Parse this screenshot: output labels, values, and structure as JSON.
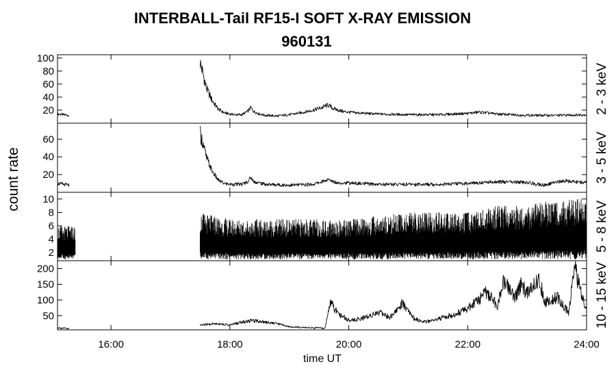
{
  "chart_data": {
    "type": "line",
    "title": "INTERBALL-Tail RF15-I SOFT X-RAY EMISSION",
    "subtitle": "960131",
    "xlabel": "time UT",
    "ylabel": "count rate",
    "xlim": [
      15.1,
      24.0
    ],
    "x_ticks": [
      16,
      18,
      20,
      22,
      24
    ],
    "x_tick_labels": [
      "16:00",
      "18:00",
      "20:00",
      "22:00",
      "24:00"
    ],
    "grid": false,
    "panels": [
      {
        "label": "2 - 3 keV",
        "ylim": [
          0,
          105
        ],
        "y_ticks": [
          20,
          40,
          60,
          80,
          100
        ],
        "series": [
          {
            "x": [
              15.1,
              15.2,
              15.3
            ],
            "y": [
              14,
              13,
              12
            ]
          },
          {
            "x": [
              17.5,
              17.55,
              17.6,
              17.7,
              17.8,
              17.9,
              18.0,
              18.1,
              18.2,
              18.3,
              18.35,
              18.4,
              18.5,
              18.6,
              18.8,
              19.0,
              19.2,
              19.4,
              19.55,
              19.65,
              19.75,
              19.9,
              20.1,
              20.5,
              21.0,
              21.5,
              22.0,
              22.2,
              22.5,
              23.0,
              23.5,
              24.0
            ],
            "y": [
              93,
              75,
              55,
              35,
              22,
              16,
              14,
              13,
              13,
              18,
              24,
              18,
              14,
              12,
              11,
              13,
              16,
              20,
              24,
              28,
              22,
              18,
              16,
              14,
              13,
              13,
              15,
              17,
              14,
              12,
              12,
              13
            ]
          }
        ]
      },
      {
        "label": "3 - 5 keV",
        "ylim": [
          0,
          78
        ],
        "y_ticks": [
          20,
          40,
          60
        ],
        "series": [
          {
            "x": [
              15.1,
              15.2,
              15.3
            ],
            "y": [
              10,
              9,
              8
            ]
          },
          {
            "x": [
              17.5,
              17.55,
              17.6,
              17.7,
              17.8,
              17.9,
              18.0,
              18.1,
              18.2,
              18.3,
              18.35,
              18.4,
              18.6,
              19.0,
              19.4,
              19.65,
              19.8,
              20.5,
              21.0,
              21.5,
              22.0,
              22.5,
              23.0,
              23.3,
              23.6,
              24.0
            ],
            "y": [
              66,
              55,
              40,
              24,
              14,
              10,
              9,
              9,
              9,
              12,
              17,
              12,
              9,
              8,
              9,
              14,
              11,
              9,
              9,
              9,
              10,
              12,
              11,
              8,
              13,
              11
            ]
          }
        ]
      },
      {
        "label": "5 - 8 keV",
        "ylim": [
          0.8,
          11
        ],
        "y_ticks": [
          2,
          4,
          6,
          8,
          10
        ],
        "series": [
          {
            "x": [
              15.1,
              15.4
            ],
            "y_min": 1,
            "y_max": 6
          },
          {
            "x": [
              17.5,
              18.0,
              19.0,
              20.0,
              21.0,
              22.0,
              22.5,
              23.0,
              23.5,
              24.0
            ],
            "y_min": [
              1,
              1,
              1,
              1,
              1,
              1,
              1,
              1,
              1,
              1
            ],
            "y_max": [
              8,
              7,
              7,
              7,
              8,
              8,
              9,
              9,
              10,
              10
            ]
          }
        ]
      },
      {
        "label": "10 - 15 keV",
        "ylim": [
          5,
          225
        ],
        "y_ticks": [
          50,
          100,
          150,
          200
        ],
        "series": [
          {
            "x": [
              15.1,
              15.2,
              15.3
            ],
            "y": [
              12,
              10,
              8
            ]
          },
          {
            "x": [
              17.5,
              17.8,
              18.0,
              18.2,
              18.4,
              18.6,
              18.8,
              19.0,
              19.3,
              19.6,
              19.65,
              19.7,
              19.8,
              20.0,
              20.2,
              20.5,
              20.7,
              20.9,
              21.0,
              21.1,
              21.3,
              21.6,
              21.8,
              22.0,
              22.2,
              22.3,
              22.5,
              22.6,
              22.8,
              22.9,
              23.0,
              23.2,
              23.3,
              23.5,
              23.7,
              23.8,
              24.0
            ],
            "y": [
              20,
              25,
              20,
              30,
              35,
              30,
              25,
              15,
              12,
              10,
              55,
              95,
              60,
              35,
              40,
              60,
              45,
              90,
              70,
              40,
              30,
              45,
              55,
              75,
              100,
              130,
              80,
              160,
              110,
              150,
              120,
              170,
              90,
              110,
              60,
              200,
              60
            ]
          }
        ]
      }
    ]
  }
}
